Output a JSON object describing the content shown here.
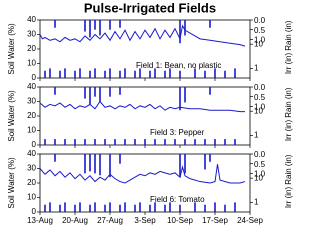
{
  "title": "Pulse-Irrigated Fields",
  "chart_data": [
    {
      "type": "line",
      "annotation": "Field 1: Bean, no plastic",
      "ylabel": "Soil Water (%)",
      "y2label": "Rain (in)",
      "y3label": "Irr (in)",
      "xlim": [
        0,
        42
      ],
      "xticks": [
        0,
        7,
        14,
        21,
        28,
        35,
        42
      ],
      "ylim": [
        0,
        40
      ],
      "yticks": [
        0,
        10,
        20,
        30,
        40
      ],
      "y2lim": [
        0,
        3
      ],
      "y2_inverted": true,
      "y2ticks": [
        {
          "value": 0,
          "label": "0.0"
        },
        {
          "value": 0.5,
          "label": "0.5"
        },
        {
          "value": 1,
          "label": "1.0"
        }
      ],
      "y3lim": [
        0.4,
        100
      ],
      "y3log": true,
      "y3ticks": [
        1,
        10
      ],
      "series": [
        {
          "name": "Soil Water",
          "color": "#1a1acc",
          "axis": "y",
          "x": [
            0,
            0.5,
            1,
            2,
            3,
            4,
            5,
            6,
            7,
            8,
            9,
            10,
            11,
            12,
            13,
            14,
            15,
            16,
            17,
            18,
            19,
            20,
            21,
            22,
            23,
            24,
            25,
            26,
            27,
            28,
            28.5,
            29,
            30,
            31,
            32,
            34,
            36,
            38,
            40,
            41
          ],
          "values": [
            30,
            27,
            28,
            26,
            27,
            25,
            28,
            26,
            27,
            25,
            29,
            26,
            30,
            27,
            31,
            26,
            32,
            27,
            33,
            26,
            32,
            27,
            33,
            28,
            34,
            27,
            33,
            28,
            34,
            27,
            36,
            33,
            31,
            29,
            27,
            26,
            25,
            24,
            23,
            22
          ]
        },
        {
          "name": "Rain",
          "color": "#1a1acc",
          "axis": "y2",
          "x": [
            3,
            9,
            10,
            11,
            12,
            14,
            16,
            28,
            29,
            34
          ],
          "values": [
            0.4,
            0.6,
            0.9,
            0.5,
            0.8,
            0.5,
            0.4,
            1.2,
            0.8,
            0.4
          ]
        },
        {
          "name": "Irrigation",
          "color": "#1a1acc",
          "axis": "y3",
          "x": [
            1,
            2,
            4,
            5,
            7,
            8,
            10,
            11,
            13,
            14,
            16,
            17,
            19,
            20,
            22,
            23,
            25,
            26,
            28,
            31,
            33,
            35,
            37,
            39
          ],
          "values": [
            0.8,
            1,
            0.8,
            1,
            0.8,
            1,
            0.8,
            1,
            0.8,
            1,
            0.8,
            1,
            0.8,
            1,
            0.8,
            1,
            0.8,
            1,
            0.8,
            1,
            0.8,
            1,
            0.8,
            1
          ]
        }
      ]
    },
    {
      "type": "line",
      "annotation": "Field 3: Pepper",
      "ylabel": "Soil Water (%)",
      "y2label": "Rain (in)",
      "y3label": "Irr (in)",
      "xlim": [
        0,
        42
      ],
      "xticks": [
        0,
        7,
        14,
        21,
        28,
        35,
        42
      ],
      "ylim": [
        0,
        40
      ],
      "yticks": [
        0,
        10,
        20,
        30,
        40
      ],
      "y2lim": [
        0,
        3
      ],
      "y2_inverted": true,
      "y2ticks": [
        {
          "value": 0,
          "label": "0.0"
        },
        {
          "value": 0.5,
          "label": "0.5"
        },
        {
          "value": 1,
          "label": "1.0"
        }
      ],
      "y3lim": [
        0.4,
        100
      ],
      "y3log": true,
      "y3ticks": [
        1,
        10
      ],
      "series": [
        {
          "name": "Soil Water",
          "color": "#1a1acc",
          "axis": "y",
          "x": [
            0,
            1,
            2,
            3,
            4,
            5,
            6,
            7,
            8,
            9,
            10,
            11,
            12,
            13,
            14,
            15,
            16,
            17,
            18,
            19,
            20,
            21,
            22,
            23,
            24,
            25,
            26,
            27,
            28,
            30,
            32,
            34,
            36,
            38,
            40,
            41
          ],
          "values": [
            29,
            26,
            28,
            27,
            29,
            26,
            28,
            25,
            27,
            26,
            28,
            25,
            30,
            26,
            27,
            25,
            27,
            26,
            28,
            25,
            27,
            26,
            28,
            25,
            27,
            24,
            26,
            25,
            26,
            25,
            25,
            24,
            24,
            24,
            23,
            23
          ]
        },
        {
          "name": "Rain",
          "color": "#1a1acc",
          "axis": "y2",
          "x": [
            3,
            9,
            10,
            11,
            12,
            14,
            16,
            28,
            29,
            34
          ],
          "values": [
            0.4,
            0.6,
            0.9,
            0.5,
            0.8,
            0.5,
            0.4,
            1.2,
            0.8,
            0.4
          ]
        },
        {
          "name": "Irrigation",
          "color": "#1a1acc",
          "axis": "y3",
          "x": [
            1,
            3,
            5,
            7,
            9,
            11,
            13,
            15,
            17,
            19,
            21,
            23,
            25,
            27,
            29,
            31,
            33,
            35,
            37,
            39
          ],
          "values": [
            0.7,
            0.7,
            0.7,
            0.7,
            0.7,
            0.7,
            0.7,
            0.7,
            0.7,
            0.7,
            0.7,
            0.7,
            0.7,
            0.7,
            0.7,
            0.7,
            0.7,
            0.7,
            0.7,
            0.7
          ]
        }
      ]
    },
    {
      "type": "line",
      "annotation": "Field 6: Tomato",
      "ylabel": "Soil Water (%)",
      "y2label": "Rain (in)",
      "y3label": "Irr (in)",
      "xlim": [
        0,
        42
      ],
      "xticks": [
        {
          "value": 0,
          "label": "13-Aug"
        },
        {
          "value": 7,
          "label": "20-Aug"
        },
        {
          "value": 14,
          "label": "27-Aug"
        },
        {
          "value": 21,
          "label": "3-Sep"
        },
        {
          "value": 28,
          "label": "10-Sep"
        },
        {
          "value": 35,
          "label": "17-Sep"
        },
        {
          "value": 42,
          "label": "24-Sep"
        }
      ],
      "ylim": [
        0,
        40
      ],
      "yticks": [
        0,
        10,
        20,
        30,
        40
      ],
      "y2lim": [
        0,
        3
      ],
      "y2_inverted": true,
      "y2ticks": [
        {
          "value": 0,
          "label": "0.0"
        },
        {
          "value": 0.5,
          "label": "0.5"
        },
        {
          "value": 1,
          "label": "1.0"
        }
      ],
      "y3lim": [
        0.4,
        100
      ],
      "y3log": true,
      "y3ticks": [
        1,
        10
      ],
      "series": [
        {
          "name": "Soil Water",
          "color": "#1a1acc",
          "axis": "y",
          "x": [
            0,
            1,
            2,
            3,
            4,
            5,
            6,
            7,
            8,
            9,
            10,
            11,
            12,
            13,
            14,
            15,
            16,
            17,
            18,
            19,
            20,
            21,
            22,
            23,
            24,
            25,
            26,
            27,
            28,
            28.5,
            29,
            30,
            32,
            34,
            35,
            35.5,
            36,
            38,
            40,
            41
          ],
          "values": [
            30,
            26,
            29,
            25,
            28,
            24,
            27,
            23,
            26,
            22,
            25,
            21,
            24,
            22,
            26,
            23,
            21,
            20,
            22,
            24,
            26,
            25,
            27,
            26,
            28,
            27,
            26,
            27,
            24,
            31,
            25,
            23,
            21,
            20,
            21,
            33,
            22,
            20,
            20,
            21
          ]
        },
        {
          "name": "Rain",
          "color": "#1a1acc",
          "axis": "y2",
          "x": [
            3,
            9,
            10,
            11,
            12,
            14,
            16,
            28,
            29,
            33,
            34
          ],
          "values": [
            0.4,
            1.0,
            0.9,
            1.0,
            1.1,
            1.2,
            0.5,
            1.2,
            1.0,
            0.8,
            0.4
          ]
        },
        {
          "name": "Irrigation",
          "color": "#1a1acc",
          "axis": "y3",
          "x": [
            1,
            2,
            4,
            5,
            7,
            8,
            10,
            11,
            13,
            14,
            16,
            17,
            19,
            20,
            22,
            23,
            25,
            26,
            28,
            31,
            33,
            35,
            37,
            39
          ],
          "values": [
            0.8,
            1,
            0.8,
            1,
            0.8,
            1,
            0.8,
            1,
            0.8,
            1,
            0.8,
            1,
            0.8,
            1,
            0.8,
            1,
            0.8,
            1,
            0.8,
            1,
            0.8,
            1,
            0.8,
            1
          ]
        }
      ]
    }
  ]
}
